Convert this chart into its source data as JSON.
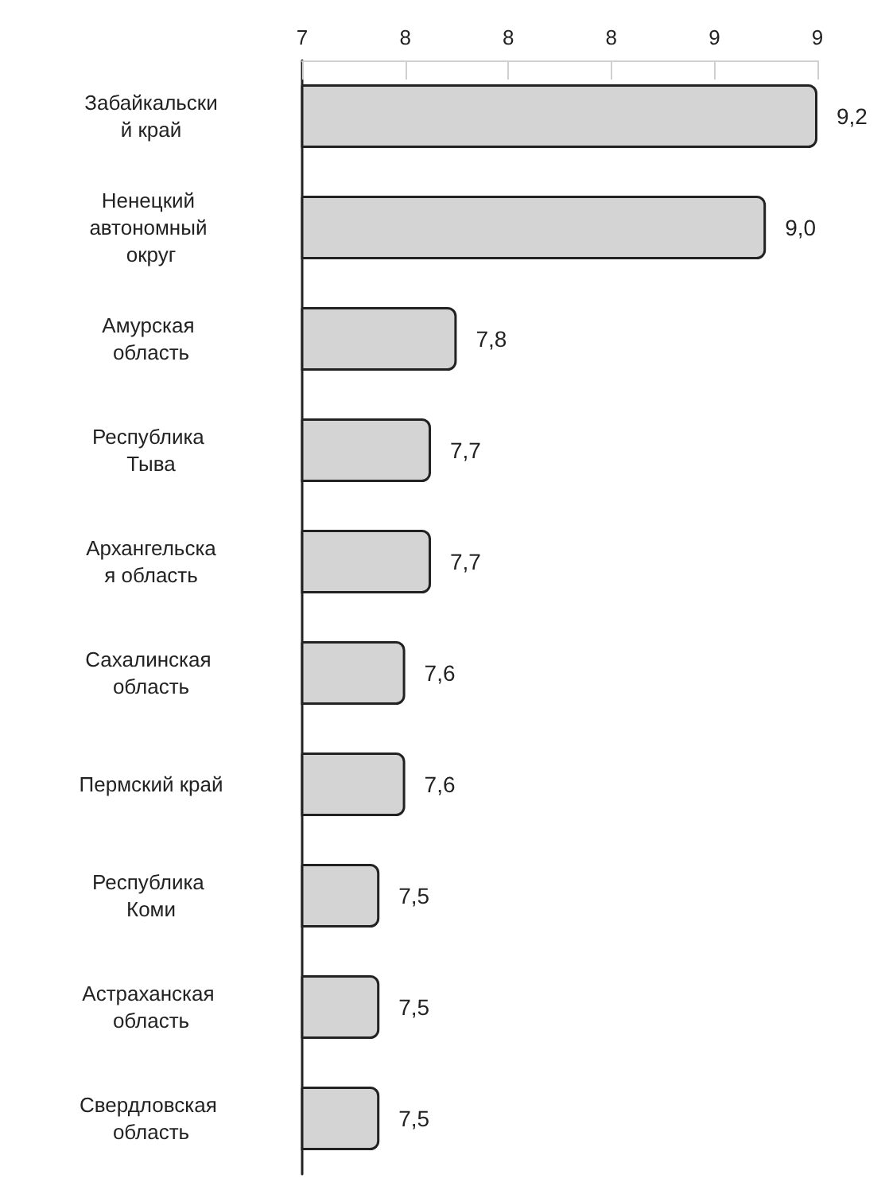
{
  "chart_data": {
    "type": "bar",
    "orientation": "horizontal",
    "categories": [
      "Забайкальский край",
      "Ненецкий автономный округ",
      "Амурская область",
      "Республика Тыва",
      "Архангельская область",
      "Сахалинская область",
      "Пермский край",
      "Республика Коми",
      "Астраханская область",
      "Свердловская область"
    ],
    "values": [
      9.2,
      9.0,
      7.8,
      7.7,
      7.7,
      7.6,
      7.6,
      7.5,
      7.5,
      7.5
    ],
    "value_labels": [
      "9,2",
      "9,0",
      "7,8",
      "7,7",
      "7,7",
      "7,6",
      "7,6",
      "7,5",
      "7,5",
      "7,5"
    ],
    "color": "#d4d4d4",
    "xlim": [
      7.2,
      9.2
    ],
    "xticks": [
      {
        "value": 7.2,
        "label": "7"
      },
      {
        "value": 7.6,
        "label": "8"
      },
      {
        "value": 8.0,
        "label": "8"
      },
      {
        "value": 8.4,
        "label": "8"
      },
      {
        "value": 8.8,
        "label": "9"
      },
      {
        "value": 9.2,
        "label": "9"
      }
    ],
    "grid": false
  }
}
